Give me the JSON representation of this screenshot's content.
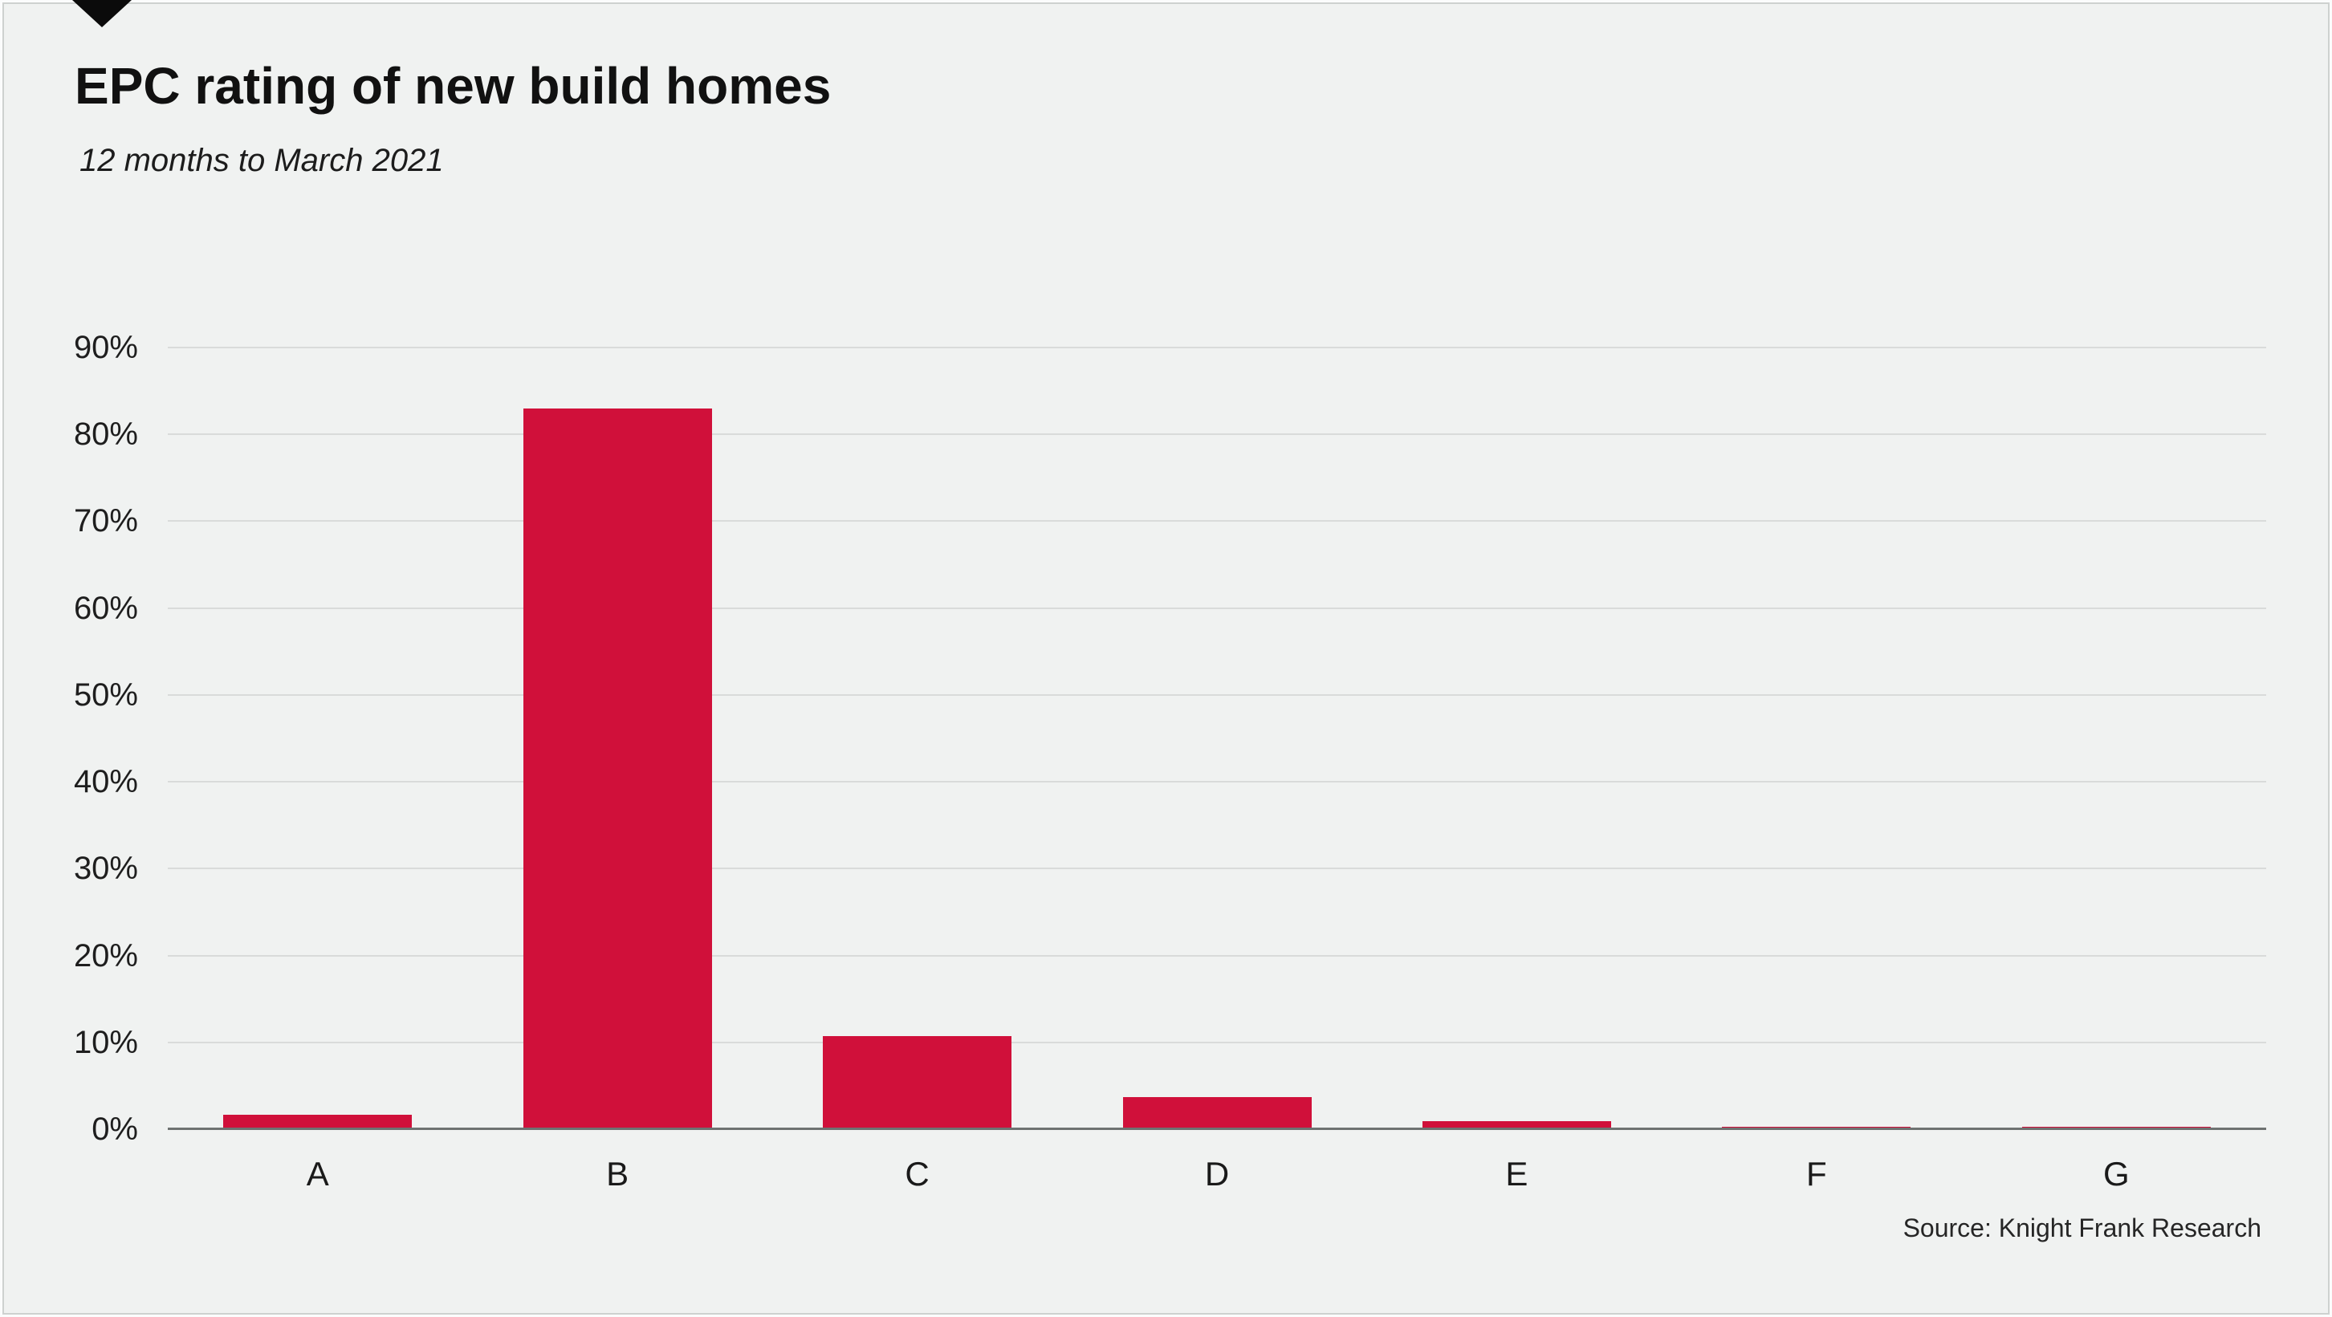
{
  "page": {
    "background_color": "#f0f2f1",
    "frame_border_color": "#ced1d0",
    "marker_color": "#0b0b0b"
  },
  "header": {
    "title": "EPC rating of new build homes",
    "subtitle": "12 months to March 2021"
  },
  "footer": {
    "source": "Source: Knight Frank Research"
  },
  "chart_data": {
    "type": "bar",
    "title": "EPC rating of new build homes",
    "subtitle": "12 months to March 2021",
    "categories": [
      "A",
      "B",
      "C",
      "D",
      "E",
      "F",
      "G"
    ],
    "values": [
      1.7,
      83,
      10.7,
      3.7,
      0.9,
      0.3,
      0.3
    ],
    "unit": "%",
    "xlabel": "",
    "ylabel": "",
    "ylim": [
      0,
      90
    ],
    "yticks": [
      90,
      80,
      70,
      60,
      50,
      40,
      30,
      20,
      10,
      0
    ],
    "grid": true,
    "bar_color": "#d0103a",
    "gridline_color": "#d9dbda",
    "axis_line_color": "#6e7271",
    "legend": null,
    "source": "Source: Knight Frank Research"
  }
}
